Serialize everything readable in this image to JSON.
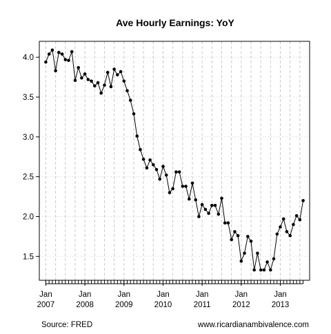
{
  "chart_data": {
    "type": "line",
    "title": "Ave Hourly Earnings: YoY",
    "xlabel": "",
    "ylabel": "",
    "series": [
      {
        "name": "",
        "x_start": "2007-01",
        "frequency": "monthly",
        "values": [
          3.94,
          4.04,
          4.09,
          3.83,
          4.06,
          4.04,
          3.97,
          3.96,
          4.07,
          3.71,
          3.87,
          3.74,
          3.79,
          3.72,
          3.7,
          3.64,
          3.68,
          3.55,
          3.65,
          3.81,
          3.63,
          3.85,
          3.78,
          3.82,
          3.7,
          3.58,
          3.46,
          3.29,
          3.01,
          2.84,
          2.72,
          2.61,
          2.71,
          2.65,
          2.59,
          2.47,
          2.63,
          2.52,
          2.3,
          2.35,
          2.56,
          2.56,
          2.38,
          2.38,
          2.22,
          2.42,
          2.21,
          2.0,
          2.15,
          2.09,
          2.04,
          2.14,
          2.14,
          2.03,
          2.23,
          1.92,
          1.92,
          1.71,
          1.81,
          1.76,
          1.44,
          1.54,
          1.75,
          1.69,
          1.33,
          1.54,
          1.33,
          1.33,
          1.43,
          1.33,
          1.47,
          1.78,
          1.87,
          1.97,
          1.81,
          1.76,
          1.9,
          2.01,
          1.96,
          2.2
        ]
      }
    ],
    "x_tick_labels": [
      [
        "Jan",
        "2007"
      ],
      [
        "Jan",
        "2008"
      ],
      [
        "Jan",
        "2009"
      ],
      [
        "Jan",
        "2010"
      ],
      [
        "Jan",
        "2011"
      ],
      [
        "Jan",
        "2012"
      ],
      [
        "Jan",
        "2013"
      ]
    ],
    "y_ticks": [
      1.5,
      2.0,
      2.5,
      3.0,
      3.5,
      4.0
    ],
    "y_tick_labels": [
      "1.5",
      "2.0",
      "2.5",
      "3.0",
      "3.5",
      "4.0"
    ],
    "ylim": [
      1.2,
      4.2
    ],
    "xlim": [
      "2006-11",
      "2013-10"
    ],
    "grid": true,
    "line_color": "#000000",
    "grid_color": "#c8c8c8"
  },
  "footer": {
    "source": "Source: FRED",
    "credit": "www.ricardianambivalence.com"
  }
}
